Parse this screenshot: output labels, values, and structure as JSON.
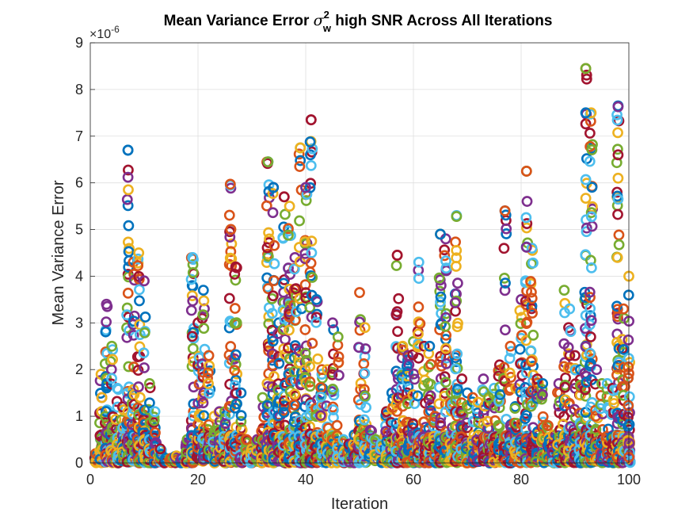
{
  "chart_data": {
    "type": "scatter",
    "title_parts": {
      "prefix": "Mean Variance Error ",
      "symbol": "σ",
      "superscript": "2",
      "subscript": "w",
      "suffix": " high SNR Across All Iterations"
    },
    "xlabel": "Iteration",
    "ylabel": "Mean Variance Error",
    "y_exponent_label": "×10",
    "y_exponent": "-6",
    "xlim": [
      0,
      100
    ],
    "ylim": [
      0,
      9
    ],
    "xticks": [
      "0",
      "20",
      "40",
      "60",
      "80",
      "100"
    ],
    "yticks": [
      "0",
      "1",
      "2",
      "3",
      "4",
      "5",
      "6",
      "7",
      "8",
      "9"
    ],
    "grid": true,
    "marker": "circle-open",
    "series_colors": [
      "#0072BD",
      "#D95319",
      "#EDB120",
      "#7E2F8E",
      "#77AC30",
      "#4DBEEE",
      "#A2142F"
    ],
    "columns_max": {
      "1": 0.2,
      "2": 1.9,
      "3": 3.4,
      "4": 2.5,
      "5": 1.6,
      "6": 1.2,
      "7": 6.7,
      "8": 4.3,
      "9": 4.5,
      "10": 3.9,
      "11": 1.7,
      "12": 1.1,
      "13": 0.3,
      "14": 0.1,
      "15": 0.1,
      "16": 0.15,
      "17": 0.1,
      "18": 0.5,
      "19": 4.4,
      "20": 3.0,
      "21": 3.7,
      "22": 2.3,
      "23": 1.0,
      "24": 1.1,
      "25": 1.1,
      "26": 5.95,
      "27": 4.2,
      "28": 1.5,
      "29": 0.5,
      "30": 0.3,
      "31": 0.5,
      "32": 1.4,
      "33": 6.45,
      "34": 5.9,
      "35": 3.0,
      "36": 5.7,
      "37": 5.5,
      "38": 4.4,
      "39": 6.75,
      "40": 5.9,
      "41": 7.35,
      "42": 3.5,
      "43": 2.0,
      "44": 2.0,
      "45": 3.0,
      "46": 2.7,
      "47": 0.5,
      "48": 0.4,
      "49": 0.6,
      "50": 3.65,
      "51": 2.9,
      "52": 0.7,
      "53": 0.5,
      "54": 0.4,
      "55": 1.1,
      "56": 1.5,
      "57": 4.45,
      "58": 2.5,
      "59": 2.3,
      "60": 2.6,
      "61": 4.3,
      "62": 2.5,
      "63": 2.5,
      "64": 1.0,
      "65": 4.9,
      "66": 4.8,
      "67": 1.5,
      "68": 5.3,
      "69": 1.8,
      "70": 1.5,
      "71": 1.4,
      "72": 1.3,
      "73": 1.8,
      "74": 1.4,
      "75": 1.6,
      "76": 2.1,
      "77": 5.4,
      "78": 2.5,
      "79": 1.6,
      "80": 3.5,
      "81": 6.25,
      "82": 4.6,
      "83": 1.8,
      "84": 1.7,
      "85": 0.8,
      "86": 0.6,
      "87": 1.7,
      "88": 3.7,
      "89": 3.3,
      "90": 2.3,
      "91": 2.0,
      "92": 8.45,
      "93": 7.5,
      "94": 2.0,
      "95": 1.7,
      "96": 1.7,
      "97": 1.6,
      "98": 7.65,
      "99": 3.3,
      "100": 4.0
    },
    "highlight_points": [
      {
        "x": 7,
        "y": 6.7
      },
      {
        "x": 7,
        "y": 6.12
      },
      {
        "x": 41,
        "y": 7.35
      },
      {
        "x": 39,
        "y": 6.75
      },
      {
        "x": 41,
        "y": 6.37
      },
      {
        "x": 81,
        "y": 6.25
      },
      {
        "x": 92,
        "y": 8.45
      },
      {
        "x": 92,
        "y": 7.5
      },
      {
        "x": 98,
        "y": 7.63
      },
      {
        "x": 98,
        "y": 6.6
      },
      {
        "x": 98,
        "y": 6.1
      },
      {
        "x": 92,
        "y": 6.07
      },
      {
        "x": 26,
        "y": 5.97
      },
      {
        "x": 33,
        "y": 6.45
      },
      {
        "x": 34,
        "y": 5.9
      },
      {
        "x": 40,
        "y": 5.9
      },
      {
        "x": 36,
        "y": 5.7
      },
      {
        "x": 92,
        "y": 5.67
      },
      {
        "x": 98,
        "y": 5.65
      },
      {
        "x": 77,
        "y": 5.4
      },
      {
        "x": 68,
        "y": 5.28
      },
      {
        "x": 65,
        "y": 4.9
      },
      {
        "x": 81,
        "y": 4.62
      },
      {
        "x": 57,
        "y": 4.45
      }
    ]
  }
}
